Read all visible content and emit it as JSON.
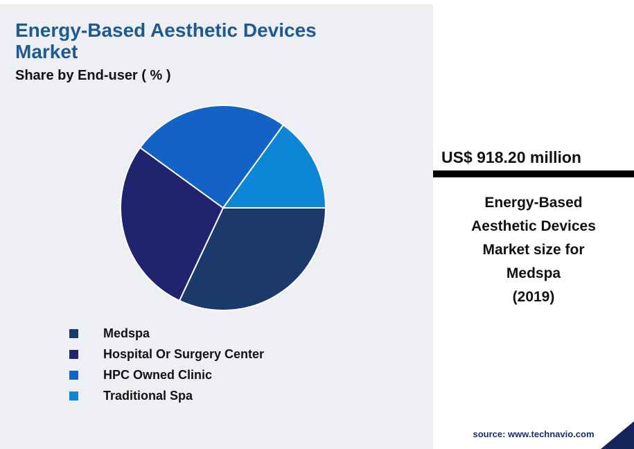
{
  "header": {
    "title": "Energy-Based Aesthetic Devices Market",
    "subtitle": "Share by End-user ( % )"
  },
  "chart_data": {
    "type": "pie",
    "title": "Share by End-user ( % )",
    "unit": "%",
    "start_angle_deg": 0,
    "direction": "clockwise",
    "legend_position": "bottom-left",
    "slices": [
      {
        "label": "Medspa",
        "value": 32,
        "color": "#1b3a6b"
      },
      {
        "label": "Hospital Or Surgery Center",
        "value": 28,
        "color": "#20246e"
      },
      {
        "label": "HPC Owned Clinic",
        "value": 25,
        "color": "#1362c5"
      },
      {
        "label": "Traditional Spa",
        "value": 15,
        "color": "#0e86d7"
      }
    ]
  },
  "side_panel": {
    "market_size_value": "US$ 918.20 million",
    "market_size_description": "Energy-Based\nAesthetic Devices\nMarket size for\nMedspa\n(2019)"
  },
  "footer": {
    "source": "source: www.technavio.com"
  },
  "colors": {
    "title_text": "#1d5a93",
    "left_background": "#edeff3",
    "divider_bar": "#000000",
    "source_text": "#1a2e6e",
    "corner_triangle": "#16245c"
  }
}
